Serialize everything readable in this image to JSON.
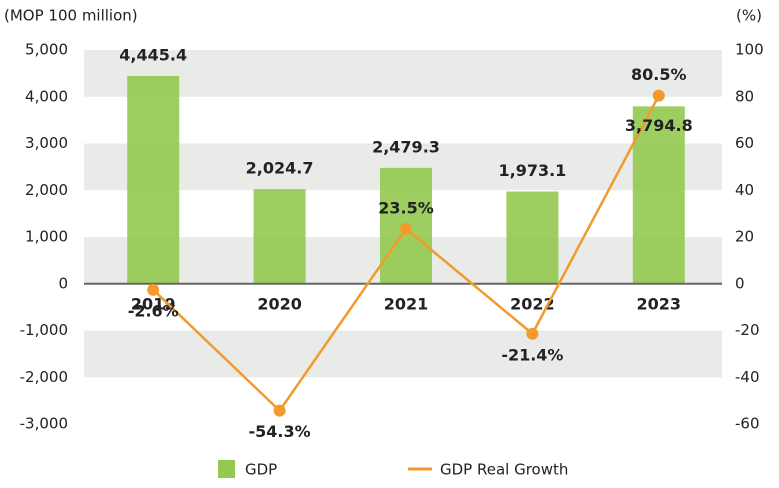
{
  "chart_data": {
    "type": "bar-line",
    "y_label": "(MOP 100 million)",
    "y2_label": "(%)",
    "categories": [
      "2019",
      "2020",
      "2021",
      "2022",
      "2023"
    ],
    "series": [
      {
        "name": "GDP",
        "color": "#93c94f",
        "values": [
          4445.4,
          2024.7,
          2479.3,
          1973.1,
          3794.8
        ],
        "value_labels": [
          "4,445.4",
          "2,024.7",
          "2,479.3",
          "1,973.1",
          "3,794.8"
        ]
      },
      {
        "name": "GDP Real Growth",
        "color": "#f39a2c",
        "axis": "y2",
        "values": [
          -2.6,
          -54.3,
          23.5,
          -21.4,
          80.5
        ],
        "value_labels": [
          "-2.6%",
          "-54.3%",
          "23.5%",
          "-21.4%",
          "80.5%"
        ]
      }
    ],
    "ylim": [
      -3000,
      5000
    ],
    "yticks": [
      {
        "value": -3000,
        "label": "-3,000"
      },
      {
        "value": -2000,
        "label": "-2,000"
      },
      {
        "value": -1000,
        "label": "-1,000"
      },
      0,
      {
        "value": 1000,
        "label": "1,000"
      },
      {
        "value": 2000,
        "label": "2,000"
      },
      {
        "value": 3000,
        "label": "3,000"
      },
      {
        "value": 4000,
        "label": "4,000"
      },
      {
        "value": 5000,
        "label": "5,000"
      }
    ],
    "y2lim": [
      -60,
      100
    ],
    "y2ticks": [
      -60,
      -40,
      -20,
      0,
      20,
      40,
      60,
      80,
      100
    ],
    "grid": "bands",
    "legend": "bottom"
  }
}
